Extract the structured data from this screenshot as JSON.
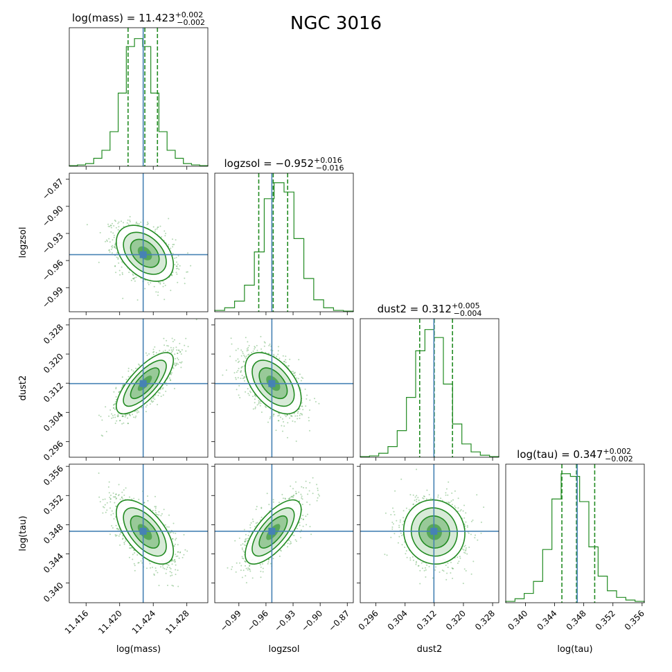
{
  "chart_data": {
    "type": "corner",
    "title": "NGC 3016",
    "colors": {
      "samples": "#228b22",
      "truth": "#4682b4"
    },
    "parameters": [
      {
        "label": "log(mass)",
        "title_base": "log(mass) = 11.423",
        "title_plus": "+0.002",
        "title_minus": "−0.002",
        "median": 11.423,
        "q16": 11.421,
        "q84": 11.4245,
        "truth": 11.4228,
        "sigma": 0.0017,
        "range": [
          11.414,
          11.4305
        ],
        "ticks": [
          11.416,
          11.42,
          11.424,
          11.428
        ],
        "tick_labels": [
          "11.416",
          "11.420",
          "11.424",
          "11.428"
        ],
        "hist": [
          0.005,
          0.01,
          0.02,
          0.06,
          0.12,
          0.26,
          0.55,
          0.9,
          0.96,
          0.9,
          0.55,
          0.26,
          0.12,
          0.06,
          0.02,
          0.01,
          0.005
        ]
      },
      {
        "label": "logzsol",
        "title_base": "logzsol = −0.952",
        "title_plus": "+0.016",
        "title_minus": "−0.016",
        "median": -0.952,
        "q16": -0.968,
        "q84": -0.936,
        "truth": -0.9535,
        "sigma": 0.0155,
        "range": [
          -1.0167,
          -0.8633
        ],
        "ticks": [
          -0.99,
          -0.96,
          -0.93,
          -0.9,
          -0.87
        ],
        "tick_labels": [
          "−0.99",
          "−0.96",
          "−0.93",
          "−0.90",
          "−0.87"
        ],
        "hist": [
          0.01,
          0.03,
          0.08,
          0.2,
          0.45,
          0.85,
          0.97,
          0.9,
          0.55,
          0.25,
          0.09,
          0.03,
          0.01,
          0.005
        ]
      },
      {
        "label": "dust2",
        "title_base": "dust2 = 0.312",
        "title_plus": "+0.005",
        "title_minus": "−0.004",
        "median": 0.312,
        "q16": 0.308,
        "q84": 0.317,
        "truth": 0.3119,
        "sigma": 0.0042,
        "range": [
          0.2917,
          0.3297
        ],
        "ticks": [
          0.296,
          0.304,
          0.312,
          0.32,
          0.328
        ],
        "tick_labels": [
          "0.296",
          "0.304",
          "0.312",
          "0.320",
          "0.328"
        ],
        "hist": [
          0.005,
          0.01,
          0.03,
          0.08,
          0.2,
          0.45,
          0.8,
          0.96,
          0.9,
          0.55,
          0.25,
          0.1,
          0.04,
          0.015,
          0.005
        ]
      },
      {
        "label": "log(tau)",
        "title_base": "log(tau) = 0.347",
        "title_plus": "+0.002",
        "title_minus": "−0.002",
        "median": 0.347,
        "q16": 0.345,
        "q84": 0.3495,
        "truth": 0.3471,
        "sigma": 0.0022,
        "range": [
          0.3373,
          0.3563
        ],
        "ticks": [
          0.34,
          0.344,
          0.348,
          0.352,
          0.356
        ],
        "tick_labels": [
          "0.340",
          "0.344",
          "0.348",
          "0.352",
          "0.356"
        ],
        "hist": [
          0.01,
          0.03,
          0.07,
          0.16,
          0.4,
          0.78,
          0.97,
          0.95,
          0.76,
          0.42,
          0.2,
          0.09,
          0.04,
          0.02,
          0.01
        ]
      }
    ],
    "correlations": [
      [
        1,
        -0.4,
        0.75,
        -0.6
      ],
      [
        -0.4,
        1,
        -0.5,
        0.7
      ],
      [
        0.75,
        -0.5,
        1,
        -0.05
      ],
      [
        -0.6,
        0.7,
        -0.05,
        1
      ]
    ]
  }
}
